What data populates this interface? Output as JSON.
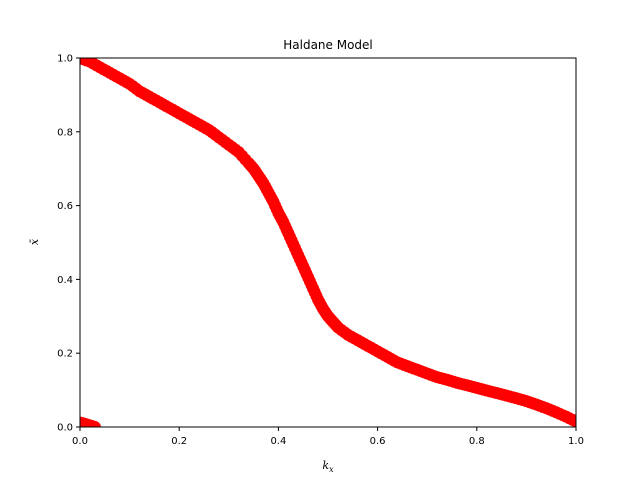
{
  "chart_data": {
    "type": "scatter",
    "title": "Haldane Model",
    "xlabel": "k_x",
    "ylabel": "x̄",
    "xlim": [
      0,
      1
    ],
    "ylim": [
      0,
      1
    ],
    "xticks": [
      "0.0",
      "0.2",
      "0.4",
      "0.6",
      "0.8",
      "1.0"
    ],
    "yticks": [
      "0.0",
      "0.2",
      "0.4",
      "0.6",
      "0.8",
      "1.0"
    ],
    "grid": false,
    "marker_color": "#ff0000",
    "series": [
      {
        "x": [
          0.0,
          0.02,
          0.04,
          0.06,
          0.08,
          0.1,
          0.12,
          0.14,
          0.16,
          0.18,
          0.2,
          0.22,
          0.24,
          0.26,
          0.28,
          0.3,
          0.32,
          0.34,
          0.35,
          0.36,
          0.37,
          0.38,
          0.39,
          0.4,
          0.41,
          0.42,
          0.43,
          0.44,
          0.45,
          0.46,
          0.47,
          0.48,
          0.49,
          0.5,
          0.51,
          0.52,
          0.54,
          0.56,
          0.58,
          0.6,
          0.62,
          0.64,
          0.66,
          0.68,
          0.7,
          0.72,
          0.74,
          0.76,
          0.78,
          0.8,
          0.82,
          0.84,
          0.86,
          0.88,
          0.9,
          0.92,
          0.94,
          0.96,
          0.98,
          1.0
        ],
        "y": [
          1.0,
          0.99,
          0.975,
          0.96,
          0.945,
          0.93,
          0.91,
          0.895,
          0.88,
          0.865,
          0.85,
          0.835,
          0.82,
          0.805,
          0.785,
          0.765,
          0.745,
          0.715,
          0.7,
          0.68,
          0.66,
          0.635,
          0.61,
          0.58,
          0.555,
          0.525,
          0.495,
          0.465,
          0.435,
          0.405,
          0.375,
          0.345,
          0.32,
          0.3,
          0.285,
          0.27,
          0.25,
          0.235,
          0.22,
          0.205,
          0.19,
          0.175,
          0.165,
          0.155,
          0.145,
          0.135,
          0.128,
          0.12,
          0.113,
          0.106,
          0.099,
          0.092,
          0.085,
          0.078,
          0.07,
          0.061,
          0.051,
          0.04,
          0.028,
          0.015
        ]
      },
      {
        "x": [
          0.0,
          0.005,
          0.01,
          0.015,
          0.02,
          0.025,
          0.03
        ],
        "y": [
          0.012,
          0.01,
          0.008,
          0.006,
          0.004,
          0.002,
          0.0
        ]
      }
    ]
  }
}
